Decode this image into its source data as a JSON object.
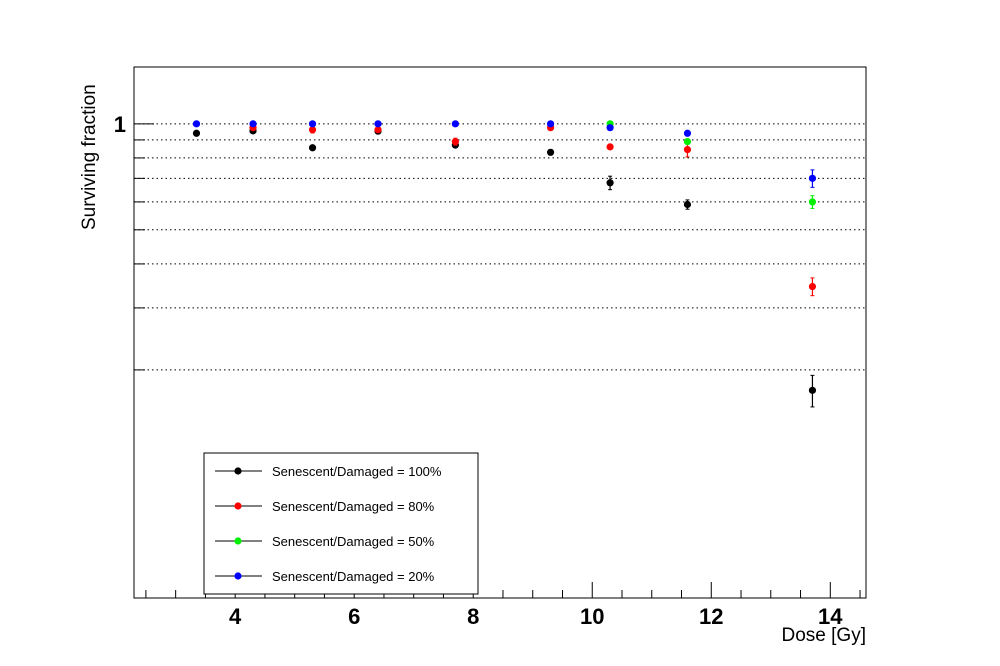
{
  "chart_data": {
    "type": "scatter",
    "xlabel": "Dose [Gy]",
    "ylabel": "Surviving fraction",
    "xlim": [
      2.3,
      14.6
    ],
    "ylim": [
      0.045,
      1.45
    ],
    "y_scale": "log",
    "x_ticks": [
      4,
      6,
      8,
      10,
      12,
      14
    ],
    "x_tick_labels": [
      "4",
      "6",
      "8",
      "10",
      "12",
      "14"
    ],
    "y_tick_labels": [
      "1"
    ],
    "grid": "horizontal dotted",
    "legend_position": "bottom-left",
    "series": [
      {
        "name": "Senescent/Damaged = 100%",
        "color": "#000000",
        "points": [
          {
            "x": 3.35,
            "y": 0.94,
            "err": 0.012
          },
          {
            "x": 4.3,
            "y": 0.955,
            "err": 0.01
          },
          {
            "x": 5.3,
            "y": 0.855,
            "err": 0.008
          },
          {
            "x": 6.4,
            "y": 0.953,
            "err": 0.01
          },
          {
            "x": 7.7,
            "y": 0.87,
            "err": 0.012
          },
          {
            "x": 9.3,
            "y": 0.83,
            "err": 0.015
          },
          {
            "x": 10.3,
            "y": 0.68,
            "err": 0.03
          },
          {
            "x": 11.6,
            "y": 0.59,
            "err": 0.018
          },
          {
            "x": 13.7,
            "y": 0.175,
            "err": 0.018
          }
        ]
      },
      {
        "name": "Senescent/Damaged = 80%",
        "color": "#ff0000",
        "points": [
          {
            "x": 4.3,
            "y": 0.975,
            "err": 0.008
          },
          {
            "x": 5.3,
            "y": 0.962,
            "err": 0.02
          },
          {
            "x": 6.4,
            "y": 0.962,
            "err": 0.015
          },
          {
            "x": 7.7,
            "y": 0.89,
            "err": 0.02
          },
          {
            "x": 9.3,
            "y": 0.975,
            "err": 0.008
          },
          {
            "x": 10.3,
            "y": 0.86,
            "err": 0.008
          },
          {
            "x": 11.6,
            "y": 0.845,
            "err": 0.04
          },
          {
            "x": 13.7,
            "y": 0.345,
            "err": 0.02
          }
        ]
      },
      {
        "name": "Senescent/Damaged = 50%",
        "color": "#00ee00",
        "points": [
          {
            "x": 10.3,
            "y": 1.0,
            "err": 0.005
          },
          {
            "x": 11.6,
            "y": 0.89,
            "err": 0.01
          },
          {
            "x": 13.7,
            "y": 0.6,
            "err": 0.025
          }
        ]
      },
      {
        "name": "Senescent/Damaged = 20%",
        "color": "#0000ff",
        "points": [
          {
            "x": 3.35,
            "y": 1.0,
            "err": 0.004
          },
          {
            "x": 4.3,
            "y": 1.0,
            "err": 0.004
          },
          {
            "x": 5.3,
            "y": 1.0,
            "err": 0.004
          },
          {
            "x": 6.4,
            "y": 1.0,
            "err": 0.004
          },
          {
            "x": 7.7,
            "y": 1.0,
            "err": 0.004
          },
          {
            "x": 9.3,
            "y": 1.0,
            "err": 0.004
          },
          {
            "x": 10.3,
            "y": 0.975,
            "err": 0.005
          },
          {
            "x": 11.6,
            "y": 0.94,
            "err": 0.015
          },
          {
            "x": 13.7,
            "y": 0.7,
            "err": 0.04
          }
        ]
      }
    ]
  }
}
